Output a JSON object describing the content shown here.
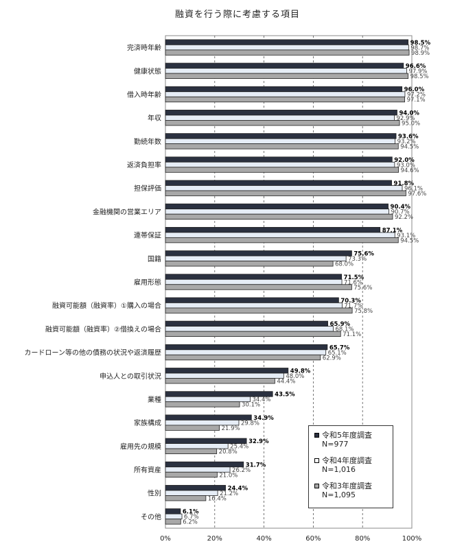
{
  "chart_data": {
    "type": "bar",
    "orientation": "horizontal",
    "title": "融資を行う際に考慮する項目",
    "categories": [
      "完済時年齢",
      "健康状態",
      "借入時年齢",
      "年収",
      "勤続年数",
      "返済負担率",
      "担保評価",
      "金融機関の営業エリア",
      "連帯保証",
      "国籍",
      "雇用形態",
      "融資可能額（融資率）①購入の場合",
      "融資可能額（融資率）②借換えの場合",
      "カードローン等の他の債務の状況や返済履歴",
      "申込人との取引状況",
      "業種",
      "家族構成",
      "雇用先の規模",
      "所有資産",
      "性別",
      "その他"
    ],
    "series": [
      {
        "name": "令和5年度調査",
        "n_label": "N=977",
        "color": "#2b3140",
        "values": [
          98.5,
          96.6,
          96.0,
          94.0,
          93.6,
          92.0,
          91.8,
          90.4,
          87.1,
          75.6,
          71.5,
          70.3,
          65.9,
          65.7,
          49.8,
          43.5,
          34.9,
          32.9,
          31.7,
          24.4,
          6.1
        ],
        "labels": [
          "98.5%",
          "96.6%",
          "96.0%",
          "94.0%",
          "93.6%",
          "92.0%",
          "91.8%",
          "90.4%",
          "87.1%",
          "75.6%",
          "71.5%",
          "70.3%",
          "65.9%",
          "65.7%",
          "49.8%",
          "43.5%",
          "34.9%",
          "32.9%",
          "31.7%",
          "24.4%",
          "6.1%"
        ]
      },
      {
        "name": "令和4年度調査",
        "n_label": "N=1,016",
        "color": "#e6edf6",
        "values": [
          98.7,
          97.9,
          97.2,
          92.9,
          93.2,
          93.0,
          96.1,
          90.7,
          93.1,
          73.3,
          71.6,
          71.7,
          68.1,
          65.1,
          48.0,
          34.4,
          29.8,
          25.4,
          26.2,
          21.2,
          6.7
        ],
        "labels": [
          "98.7%",
          "97.9%",
          "97.2%",
          "92.9%",
          "93.2%",
          "93.0%",
          "96.1%",
          "90.7%",
          "93.1%",
          "73.3%",
          "71.6%",
          "71.7%",
          "68.1%",
          "65.1%",
          "48.0%",
          "34.4%",
          "29.8%",
          "25.4%",
          "26.2%",
          "21.2%",
          "6.7%"
        ]
      },
      {
        "name": "令和3年度調査",
        "n_label": "N=1,095",
        "color": "#a8a8a8",
        "values": [
          98.9,
          98.5,
          97.1,
          95.0,
          94.5,
          94.6,
          97.6,
          92.2,
          94.5,
          68.0,
          75.6,
          75.8,
          71.1,
          62.9,
          44.4,
          30.1,
          21.9,
          20.8,
          21.0,
          16.4,
          6.2
        ],
        "labels": [
          "98.9%",
          "98.5%",
          "97.1%",
          "95.0%",
          "94.5%",
          "94.6%",
          "97.6%",
          "92.2%",
          "94.5%",
          "68.0%",
          "75.6%",
          "75.8%",
          "71.1%",
          "62.9%",
          "44.4%",
          "30.1%",
          "21.9%",
          "20.8%",
          "21.0%",
          "16.4%",
          "6.2%"
        ]
      }
    ],
    "xlim": [
      0,
      100
    ],
    "xticks": [
      "0%",
      "20%",
      "40%",
      "60%",
      "80%",
      "100%"
    ],
    "grid": "dashed vertical",
    "legend_position": "bottom-right"
  }
}
